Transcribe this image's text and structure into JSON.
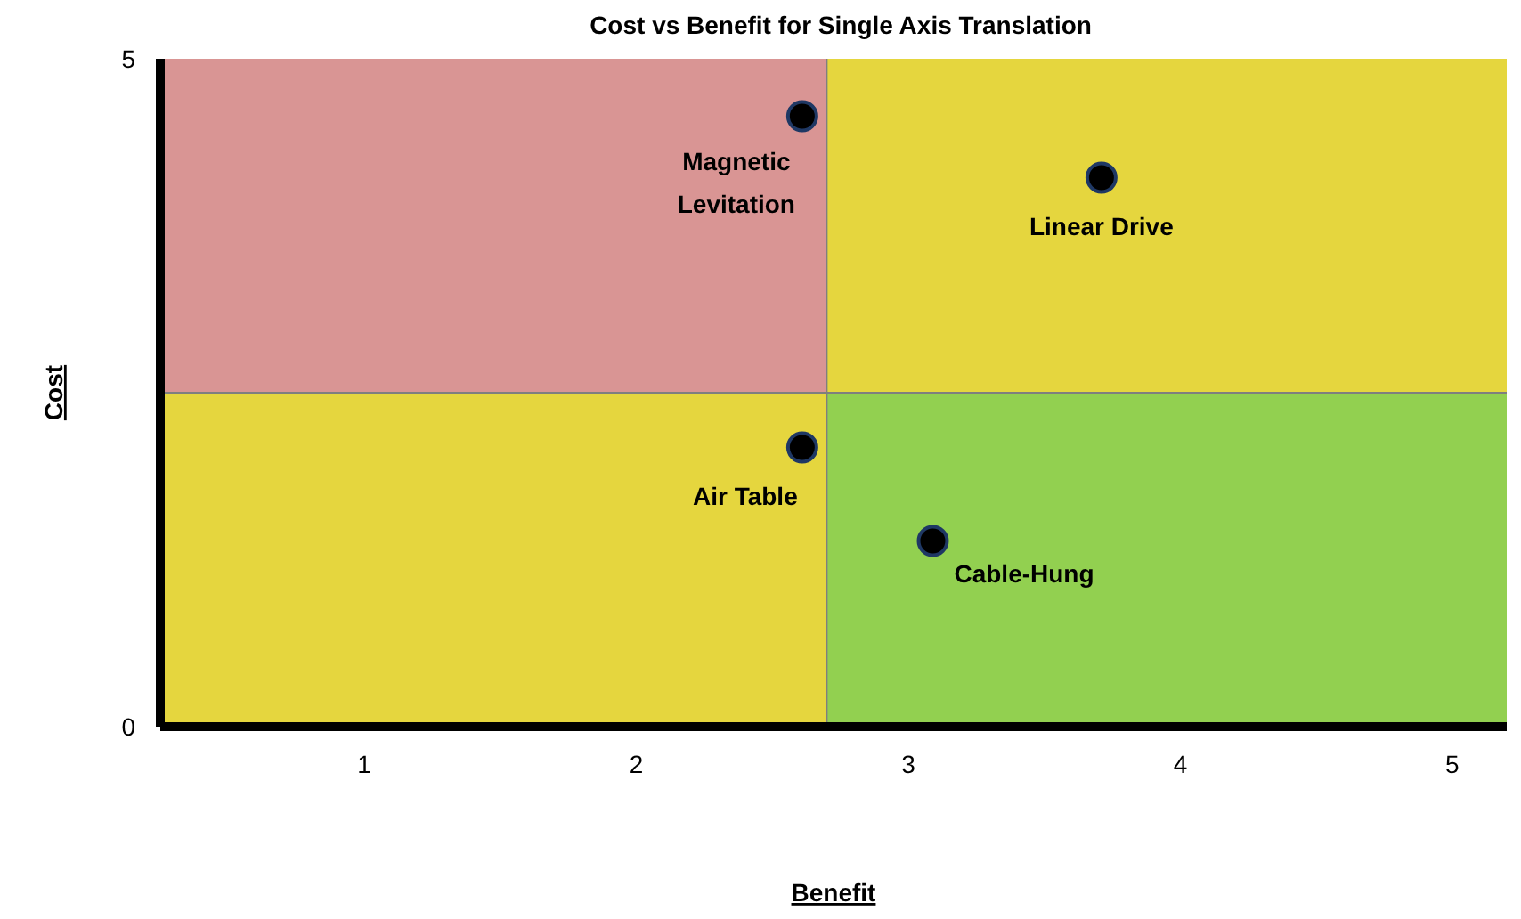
{
  "chart_data": {
    "type": "scatter",
    "title": "Cost vs Benefit for Single Axis Translation",
    "xlabel": "Benefit",
    "ylabel": "Cost",
    "x": [
      2.61,
      3.71,
      2.61,
      3.09
    ],
    "series": [
      {
        "color": "#000000",
        "values": [
          4.57,
          4.11,
          2.09,
          1.39
        ]
      }
    ],
    "annotations": [
      {
        "text": "Magnetic Levitation",
        "x": 2.61,
        "y": 4.57
      },
      {
        "text": "Linear Drive",
        "x": 3.71,
        "y": 4.11
      },
      {
        "text": "Air Table",
        "x": 2.61,
        "y": 2.09
      },
      {
        "text": "Cable-Hung",
        "x": 3.09,
        "y": 1.39
      }
    ],
    "ref_lines": [
      {
        "axis": "x",
        "value": 2.7,
        "color": "#7f7f7f"
      },
      {
        "axis": "y",
        "value": 2.5,
        "color": "#7f7f7f"
      }
    ],
    "xlim": [
      0.25,
      5.2
    ],
    "ylim": [
      0,
      5
    ],
    "xticks": [
      1,
      2,
      3,
      4,
      5
    ],
    "yticks": [
      0,
      5
    ],
    "marker": "circle"
  }
}
